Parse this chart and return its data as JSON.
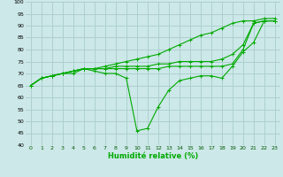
{
  "title": "",
  "xlabel": "Humidité relative (%)",
  "ylabel": "",
  "bg_color": "#cce8e8",
  "grid_color": "#aacccc",
  "line_color": "#00aa00",
  "marker_color": "#00aa00",
  "xlim": [
    -0.5,
    23.5
  ],
  "ylim": [
    40,
    100
  ],
  "yticks": [
    40,
    45,
    50,
    55,
    60,
    65,
    70,
    75,
    80,
    85,
    90,
    95,
    100
  ],
  "xticks": [
    0,
    1,
    2,
    3,
    4,
    5,
    6,
    7,
    8,
    9,
    10,
    11,
    12,
    13,
    14,
    15,
    16,
    17,
    18,
    19,
    20,
    21,
    22,
    23
  ],
  "series": [
    [
      65,
      68,
      69,
      70,
      70,
      72,
      71,
      70,
      70,
      68,
      46,
      47,
      56,
      63,
      67,
      68,
      69,
      69,
      68,
      73,
      79,
      83,
      92,
      92
    ],
    [
      65,
      68,
      69,
      70,
      71,
      72,
      72,
      72,
      72,
      72,
      72,
      72,
      72,
      73,
      73,
      73,
      73,
      73,
      73,
      74,
      80,
      91,
      92,
      92
    ],
    [
      65,
      68,
      69,
      70,
      71,
      72,
      72,
      72,
      73,
      73,
      73,
      73,
      74,
      74,
      75,
      75,
      75,
      75,
      76,
      78,
      82,
      91,
      92,
      92
    ],
    [
      65,
      68,
      69,
      70,
      71,
      72,
      72,
      73,
      74,
      75,
      76,
      77,
      78,
      80,
      82,
      84,
      86,
      87,
      89,
      91,
      92,
      92,
      93,
      93
    ]
  ]
}
